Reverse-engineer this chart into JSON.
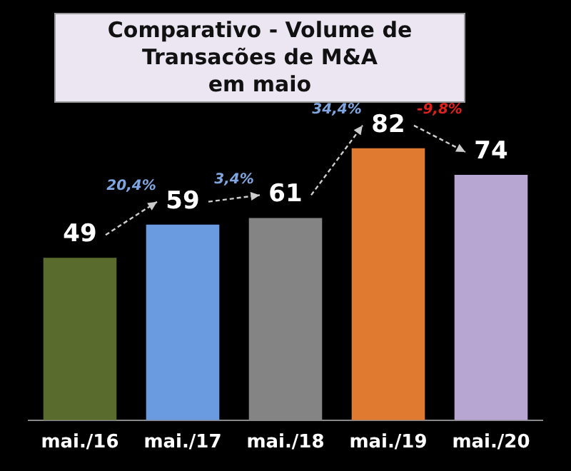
{
  "chart_data": {
    "type": "bar",
    "title": "Comparativo - Volume de Transacões de M&A\nem maio",
    "categories": [
      "mai./16",
      "mai./17",
      "mai./18",
      "mai./19",
      "mai./20"
    ],
    "values": [
      49,
      59,
      61,
      82,
      74
    ],
    "colors": [
      "#5a6b2e",
      "#6a9ae0",
      "#848484",
      "#e07a30",
      "#b8a6d2"
    ],
    "data_labels": true,
    "annotations": [
      "20,4%",
      "3,4%",
      "34,4%",
      "-9,8%"
    ],
    "grid": false,
    "legend": false
  }
}
